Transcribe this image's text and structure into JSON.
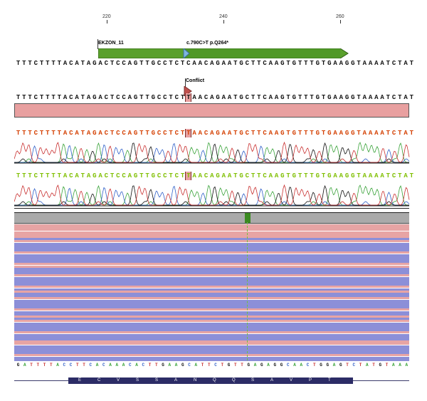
{
  "ruler": {
    "ticks": [
      "220",
      "240",
      "260"
    ]
  },
  "annotations": {
    "exon_label": "EKZON_11",
    "variant_label": "c.790C>T p.Q264*",
    "conflict_label": "Conflict"
  },
  "sequences": {
    "reference": "TTTCTTTTACATAGACTCCAGTTGCCTCTCAACAGAATGCTTCAAGTGTTTGTGAAGGTAAAATCTAT",
    "consensus": "TTTCTTTTACATAGACTCCAGTTGCCTCTTAACAGAATGCTTCAAGTGTTTGTGAAGGTAAAATCTAT",
    "read_1": "TTTCTTTTACATAGACTCCAGTTGCCTCTTAACAGAATGCTTCAAGTGTTTGTGAAGGTAAAATCTAT",
    "read_2": "TTTCTTTTACATAGACTCCAGTTGCCTCTTAACAGAATGCTTCAAGTGTTTGTGAAGGTAAAATCTAT",
    "bottom_reverse": "GATTTTACCTTCACAAACACTTGAAGCATTCTGTTGAGAGGCAACTGGAGTCTATGTAAA",
    "translation": "E C V S S A N Q Q S A V P T"
  },
  "colors": {
    "read_1_text": "#d43f00",
    "read_2_text": "#7fbf00",
    "pink_band": "#e8a0a0",
    "exon_arrow": "#5aa02c",
    "variant_marker": "#7fb6e0",
    "conflict_marker": "#c0504d",
    "read_blue": "#8c8fd8",
    "read_pink": "#e7a4a4",
    "snp_highlight": "#3b8a21"
  },
  "reads_panel": {
    "total_reads": 60
  }
}
